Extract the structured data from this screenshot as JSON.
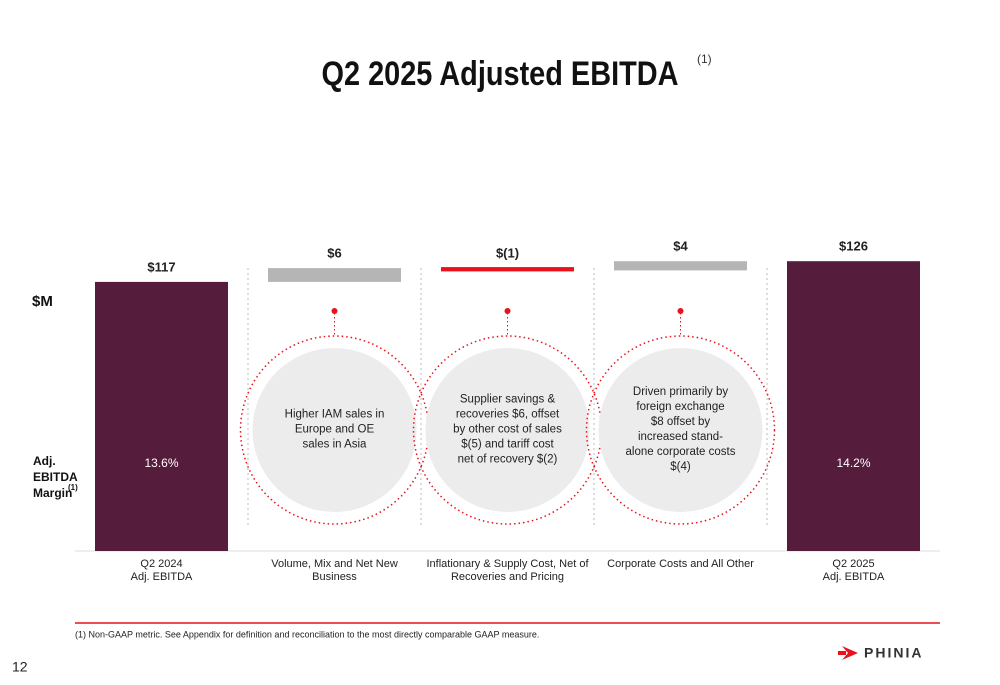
{
  "chart_data": {
    "type": "waterfall",
    "title": "Q2 2025 Adjusted EBITDA",
    "title_note": "(1)",
    "ylabel": "$M",
    "categories": [
      "Q2 2024\nAdj. EBITDA",
      "Volume, Mix and Net New Business",
      "Inflationary & Supply Cost, Net of\nRecoveries and Pricing",
      "Corporate Costs and All Other",
      "Q2 2025\nAdj. EBITDA"
    ],
    "values": [
      117,
      6,
      -1,
      4,
      126
    ],
    "value_labels": [
      "$117",
      "$6",
      "$(1)",
      "$4",
      "$126"
    ],
    "kinds": [
      "total",
      "increase",
      "decrease",
      "increase",
      "total"
    ],
    "colors": {
      "total": "#561c3c",
      "increase": "#b5b5b5",
      "decrease": "#e8121a"
    },
    "ylim": [
      0,
      140
    ],
    "annotations": [
      null,
      "Higher IAM sales in\nEurope and OE\nsales in Asia",
      "Supplier savings &\nrecoveries $6, offset\nby other cost of sales\n$(5) and tariff cost\nnet of recovery $(2)",
      "Driven primarily by\nforeign exchange\n$8 offset by\nincreased stand-\nalone corporate costs\n$(4)",
      null
    ],
    "margin": {
      "label": "Adj.\nEBITDA\nMargin",
      "note": "(1)",
      "values": [
        13.6,
        null,
        null,
        null,
        14.2
      ],
      "value_labels": [
        "13.6%",
        null,
        null,
        null,
        "14.2%"
      ]
    }
  },
  "footnote": "(1) Non-GAAP metric. See Appendix for definition and reconciliation to the most directly comparable GAAP measure.",
  "page_number": "12",
  "logo": "PHINIA"
}
